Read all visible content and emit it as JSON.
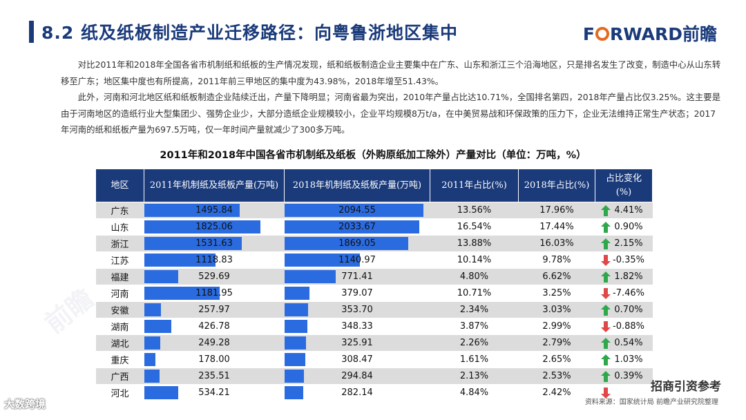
{
  "header": {
    "title": "8.2 纸及纸板制造产业迁移路径：向粤鲁浙地区集中",
    "logo_part1": "F",
    "logo_part2": "RWARD前瞻"
  },
  "paragraphs": [
    "对比2011年和2018年全国各省市机制纸和纸板的生产情况发现，纸和纸板制造企业主要集中在广东、山东和浙江三个沿海地区，只是排名发生了改变，制造中心从山东转移至广东；地区集中度也有所提高，2011年前三甲地区的集中度为43.98%，2018年增至51.43%。",
    "此外，河南和河北地区纸和纸板制造企业陆续迁出，产量下降明显；河南省最为突出，2010年产量占比达10.71%，全国排名第四，2018年产量占比仅3.25%。这主要是由于河南地区的造纸行业大型集团少、强势企业少，大部分造纸企业规模较小，企业平均规模8万t/a，在中美贸易战和环保政策的压力下，企业无法维持正常生产状态；2017年河南的纸和纸板产量为697.5万吨，仅一年时间产量就减少了300多万吨。"
  ],
  "table": {
    "title": "2011年和2018年中国各省市机制纸及纸板（外购原纸加工除外）产量对比（单位：万吨，%）",
    "headers": [
      "地区",
      "2011年机制纸及纸板产量(万吨)",
      "2018年机制纸及纸板产量(万吨)",
      "2011年占比(%)",
      "2018年占比(%)",
      "占比变化(%)"
    ],
    "bar_max": 2200,
    "rows": [
      {
        "region": "广东",
        "p2011": "1495.84",
        "v2011": 1495.84,
        "p2018": "2094.55",
        "v2018": 2094.55,
        "s2011": "13.56%",
        "s2018": "17.96%",
        "change": "4.41%",
        "dir": "up"
      },
      {
        "region": "山东",
        "p2011": "1825.06",
        "v2011": 1825.06,
        "p2018": "2033.67",
        "v2018": 2033.67,
        "s2011": "16.54%",
        "s2018": "17.44%",
        "change": "0.90%",
        "dir": "up"
      },
      {
        "region": "浙江",
        "p2011": "1531.63",
        "v2011": 1531.63,
        "p2018": "1869.05",
        "v2018": 1869.05,
        "s2011": "13.88%",
        "s2018": "16.03%",
        "change": "2.15%",
        "dir": "up"
      },
      {
        "region": "江苏",
        "p2011": "1118.83",
        "v2011": 1118.83,
        "p2018": "1140.97",
        "v2018": 1140.97,
        "s2011": "10.14%",
        "s2018": "9.78%",
        "change": "-0.35%",
        "dir": "down"
      },
      {
        "region": "福建",
        "p2011": "529.69",
        "v2011": 529.69,
        "p2018": "771.41",
        "v2018": 771.41,
        "s2011": "4.80%",
        "s2018": "6.62%",
        "change": "1.82%",
        "dir": "up"
      },
      {
        "region": "河南",
        "p2011": "1181.95",
        "v2011": 1181.95,
        "p2018": "379.07",
        "v2018": 379.07,
        "s2011": "10.71%",
        "s2018": "3.25%",
        "change": "-7.46%",
        "dir": "down"
      },
      {
        "region": "安徽",
        "p2011": "257.97",
        "v2011": 257.97,
        "p2018": "353.70",
        "v2018": 353.7,
        "s2011": "2.34%",
        "s2018": "3.03%",
        "change": "0.70%",
        "dir": "up"
      },
      {
        "region": "湖南",
        "p2011": "426.78",
        "v2011": 426.78,
        "p2018": "348.33",
        "v2018": 348.33,
        "s2011": "3.87%",
        "s2018": "2.99%",
        "change": "-0.88%",
        "dir": "down"
      },
      {
        "region": "湖北",
        "p2011": "249.28",
        "v2011": 249.28,
        "p2018": "325.91",
        "v2018": 325.91,
        "s2011": "2.26%",
        "s2018": "2.79%",
        "change": "0.54%",
        "dir": "up"
      },
      {
        "region": "重庆",
        "p2011": "178.00",
        "v2011": 178.0,
        "p2018": "308.47",
        "v2018": 308.47,
        "s2011": "1.61%",
        "s2018": "2.65%",
        "change": "1.03%",
        "dir": "up"
      },
      {
        "region": "广西",
        "p2011": "235.51",
        "v2011": 235.51,
        "p2018": "294.84",
        "v2018": 294.84,
        "s2011": "2.13%",
        "s2018": "2.53%",
        "change": "0.39%",
        "dir": "up"
      },
      {
        "region": "河北",
        "p2011": "534.21",
        "v2011": 534.21,
        "p2018": "282.14",
        "v2018": 282.14,
        "s2011": "4.84%",
        "s2018": "2.42%",
        "change": "",
        "dir": "down"
      }
    ]
  },
  "footer": {
    "source": "资料来源：国家统计局  前瞻产业研究院整理",
    "wechat": "招商引资参考",
    "bottom_left": "大数跨境"
  },
  "colors": {
    "navy": "#1a3a7a",
    "bar_blue": "#2b6be0",
    "up_green": "#2ea84a",
    "down_red": "#e04848",
    "logo_orange": "#e56a1f"
  }
}
